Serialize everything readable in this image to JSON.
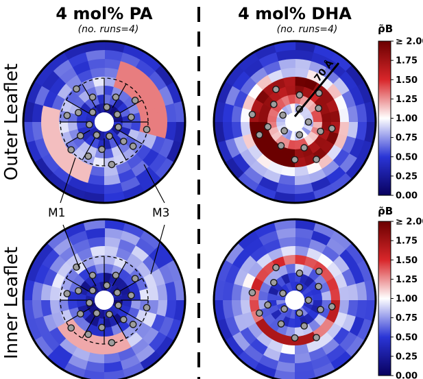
{
  "columns": [
    {
      "title": "4 mol% PA",
      "subtitle": "(no. runs=4)"
    },
    {
      "title": "4 mol% DHA",
      "subtitle": "(no. runs=4)"
    }
  ],
  "rows": [
    "Outer Leaflet",
    "Inner Leaflet"
  ],
  "annotations": {
    "m1": "M1",
    "m3": "M3",
    "radius": "70 Å"
  },
  "colorbar": {
    "title": "ρ̃B",
    "ticks": [
      "≥ 2.00",
      "1.75",
      "1.50",
      "1.25",
      "1.00",
      "0.75",
      "0.50",
      "0.25",
      "0.00"
    ],
    "range": [
      0,
      2
    ],
    "colors": [
      "#08005e",
      "#2a35d6",
      "#ffffff",
      "#d8262a",
      "#6b0000"
    ]
  },
  "chart_data": [
    {
      "type": "heatmap",
      "panel": "4 mol% PA / Outer Leaflet",
      "coords": "polar",
      "radius_max_A": 70,
      "value": "ρ̃B",
      "rings_mean": [
        0.3,
        0.5,
        0.7,
        0.78,
        0.72,
        0.62,
        0.52,
        0.45
      ],
      "hotspots": [
        {
          "angle_deg": 60,
          "ring_from": 3,
          "ring_to": 5,
          "value": 1.3
        },
        {
          "angle_deg": 240,
          "ring_from": 4,
          "ring_to": 5,
          "value": 1.15
        }
      ],
      "protein_beads": 22,
      "helix_labels": [
        "M1",
        "M3"
      ]
    },
    {
      "type": "heatmap",
      "panel": "4 mol% DHA / Outer Leaflet",
      "coords": "polar",
      "radius_max_A": 70,
      "value": "ρ̃B",
      "rings_mean": [
        0.9,
        1.25,
        1.7,
        1.85,
        1.0,
        0.7,
        0.55,
        0.45
      ],
      "hotspots": [
        {
          "angle_deg": 225,
          "ring_from": 2,
          "ring_to": 3,
          "value": 2.0
        }
      ],
      "protein_beads": 19
    },
    {
      "type": "heatmap",
      "panel": "4 mol% PA / Inner Leaflet",
      "coords": "polar",
      "radius_max_A": 70,
      "value": "ρ̃B",
      "rings_mean": [
        0.25,
        0.3,
        0.6,
        0.8,
        0.82,
        0.72,
        0.62,
        0.55
      ],
      "hotspots": [
        {
          "angle_deg": 190,
          "ring_from": 3,
          "ring_to": 4,
          "value": 1.2
        }
      ],
      "protein_beads": 22,
      "helix_labels": [
        "M1",
        "M3"
      ]
    },
    {
      "type": "heatmap",
      "panel": "4 mol% DHA / Inner Leaflet",
      "coords": "polar",
      "radius_max_A": 70,
      "value": "ρ̃B",
      "rings_mean": [
        0.55,
        0.45,
        0.75,
        1.45,
        0.85,
        0.7,
        0.6,
        0.55
      ],
      "hotspots": [
        {
          "angle_deg": 200,
          "ring_from": 3,
          "ring_to": 3,
          "value": 1.7
        }
      ],
      "protein_beads": 19
    }
  ]
}
